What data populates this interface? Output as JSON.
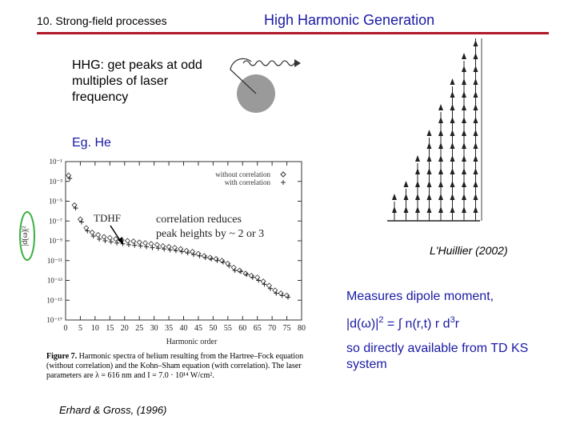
{
  "header": {
    "section": "10. Strong-field processes",
    "title": "High Harmonic Generation",
    "rule_color": "#b0182a",
    "title_color": "#1a1aa6"
  },
  "intro": {
    "hhg": "HHG: get peaks at odd multiples of laser frequency",
    "example": "Eg.  He"
  },
  "figure": {
    "legend_without": "without correlation",
    "legend_with": "with correlation",
    "tdhf_label": "TDHF",
    "annotation": [
      "correlation reduces",
      "peak heights by ~ 2 or 3"
    ],
    "caption_label": "Figure 7.",
    "caption_text": "Harmonic spectra of helium resulting from the Hartree–Fock equation (without correlation) and the Kohn–Sham equation (with correlation). The laser parameters are λ = 616 nm and I = 7.0 · 10¹⁴ W/cm².",
    "citation": "Erhard & Gross, (1996)",
    "ylabel": "|d(ω)|²",
    "xlabel": "Harmonic order"
  },
  "chart_data": {
    "type": "scatter",
    "xlabel": "Harmonic order",
    "ylabel": "|d(ω)|²",
    "y_scale": "log",
    "xlim": [
      0,
      80
    ],
    "ylim": [
      1e-17,
      0.1
    ],
    "x_ticks": [
      0,
      5,
      10,
      15,
      20,
      25,
      30,
      35,
      40,
      45,
      50,
      55,
      60,
      65,
      70,
      75,
      80
    ],
    "y_tick_labels": [
      "10⁻¹",
      "10⁻³",
      "10⁻⁵",
      "10⁻⁷",
      "10⁻⁹",
      "10⁻¹¹",
      "10⁻¹³",
      "10⁻¹⁵",
      "10⁻¹⁷"
    ],
    "y_tick_values": [
      0.1,
      0.001,
      1e-05,
      1e-07,
      1e-09,
      1e-11,
      1e-13,
      1e-15,
      1e-17
    ],
    "series": [
      {
        "name": "without correlation",
        "marker": "diamond",
        "x": [
          1,
          3,
          5,
          7,
          9,
          11,
          13,
          15,
          17,
          19,
          21,
          23,
          25,
          27,
          29,
          31,
          33,
          35,
          37,
          39,
          41,
          43,
          45,
          47,
          49,
          51,
          53,
          55,
          57,
          59,
          61,
          63,
          65,
          67,
          69,
          71,
          73,
          75
        ],
        "y": [
          0.004,
          4e-06,
          1.5e-07,
          2e-08,
          7e-09,
          4e-09,
          2.5e-09,
          2e-09,
          1.5e-09,
          1.2e-09,
          1e-09,
          9e-10,
          7e-10,
          6e-10,
          5e-10,
          4e-10,
          3e-10,
          2.5e-10,
          2e-10,
          1.5e-10,
          1e-10,
          8e-11,
          5e-11,
          3e-11,
          2e-11,
          1.5e-11,
          1e-11,
          5e-12,
          2e-12,
          1e-12,
          5e-13,
          3e-13,
          2e-13,
          8e-14,
          3e-14,
          1e-14,
          5e-15,
          3e-15
        ]
      },
      {
        "name": "with correlation",
        "marker": "plus",
        "x": [
          1,
          3,
          5,
          7,
          9,
          11,
          13,
          15,
          17,
          19,
          21,
          23,
          25,
          27,
          29,
          31,
          33,
          35,
          37,
          39,
          41,
          43,
          45,
          47,
          49,
          51,
          53,
          55,
          57,
          59,
          61,
          63,
          65,
          67,
          69,
          71,
          73,
          75
        ],
        "y": [
          0.002,
          2e-06,
          8e-08,
          1e-08,
          3e-09,
          1.5e-09,
          1e-09,
          8e-10,
          6e-10,
          5e-10,
          4e-10,
          3.5e-10,
          3e-10,
          2.5e-10,
          2e-10,
          1.8e-10,
          1.5e-10,
          1.2e-10,
          1e-10,
          8e-11,
          6e-11,
          4e-11,
          3e-11,
          2e-11,
          1.5e-11,
          1e-11,
          7e-12,
          3e-12,
          1e-12,
          8e-13,
          4e-13,
          2e-13,
          1e-13,
          4e-14,
          1.5e-14,
          5e-15,
          3e-15,
          2e-15
        ]
      }
    ]
  },
  "diagram": {
    "description_free": true,
    "harmonic_arrow_counts": [
      1,
      2,
      4,
      6,
      8,
      10,
      12,
      14
    ]
  },
  "right": {
    "citation": "L'Huillier (2002)",
    "measures": "Measures dipole moment,",
    "formula_lhs": "|d(ω)|",
    "formula_sup": "2",
    "formula_rhs": " = ∫ n(r,t) r d",
    "formula_sup2": "3",
    "formula_end": "r",
    "ks_text": "so directly available from TD KS system"
  }
}
